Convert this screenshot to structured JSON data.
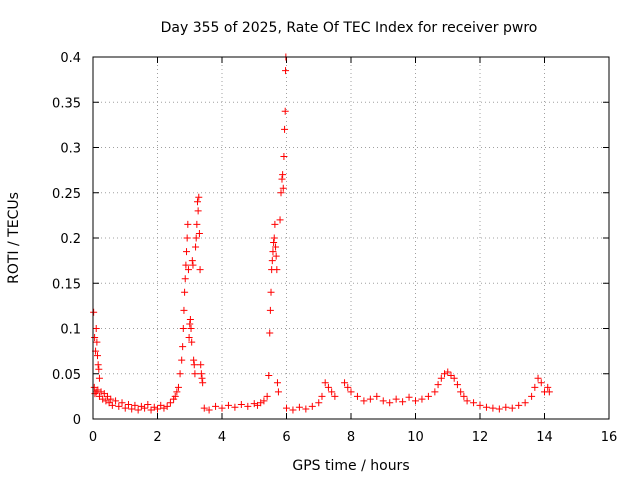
{
  "chart_data": {
    "type": "scatter",
    "title": "Day 355 of 2025, Rate Of TEC Index for receiver pwro",
    "xlabel": "GPS time / hours",
    "ylabel": "ROTI / TECUs",
    "xlim": [
      0,
      16
    ],
    "ylim": [
      0,
      0.4
    ],
    "xticks": [
      0,
      2,
      4,
      6,
      8,
      10,
      12,
      14,
      16
    ],
    "yticks": [
      0,
      0.05,
      0.1,
      0.15,
      0.2,
      0.25,
      0.3,
      0.35,
      0.4
    ],
    "xtick_labels": [
      "0",
      "2",
      "4",
      "6",
      "8",
      "10",
      "12",
      "14",
      "16"
    ],
    "ytick_labels": [
      "0",
      "0.05",
      "0.1",
      "0.15",
      "0.2",
      "0.25",
      "0.3",
      "0.35",
      "0.4"
    ],
    "grid": true,
    "marker": "+",
    "color": "#ff0000",
    "series": [
      {
        "name": "ROTI",
        "points": [
          [
            0.02,
            0.118
          ],
          [
            0.05,
            0.09
          ],
          [
            0.08,
            0.075
          ],
          [
            0.1,
            0.1
          ],
          [
            0.12,
            0.085
          ],
          [
            0.14,
            0.07
          ],
          [
            0.16,
            0.06
          ],
          [
            0.18,
            0.055
          ],
          [
            0.2,
            0.045
          ],
          [
            0.04,
            0.035
          ],
          [
            0.06,
            0.028
          ],
          [
            0.1,
            0.03
          ],
          [
            0.15,
            0.032
          ],
          [
            0.2,
            0.025
          ],
          [
            0.25,
            0.03
          ],
          [
            0.3,
            0.022
          ],
          [
            0.35,
            0.028
          ],
          [
            0.4,
            0.02
          ],
          [
            0.45,
            0.025
          ],
          [
            0.5,
            0.018
          ],
          [
            0.55,
            0.022
          ],
          [
            0.6,
            0.015
          ],
          [
            0.7,
            0.02
          ],
          [
            0.8,
            0.014
          ],
          [
            0.9,
            0.018
          ],
          [
            1.0,
            0.012
          ],
          [
            1.1,
            0.016
          ],
          [
            1.2,
            0.011
          ],
          [
            1.3,
            0.015
          ],
          [
            1.4,
            0.01
          ],
          [
            1.5,
            0.014
          ],
          [
            1.6,
            0.012
          ],
          [
            1.7,
            0.016
          ],
          [
            1.8,
            0.01
          ],
          [
            1.9,
            0.013
          ],
          [
            2.0,
            0.011
          ],
          [
            2.1,
            0.015
          ],
          [
            2.2,
            0.012
          ],
          [
            2.3,
            0.014
          ],
          [
            2.4,
            0.018
          ],
          [
            2.5,
            0.022
          ],
          [
            2.55,
            0.025
          ],
          [
            2.6,
            0.03
          ],
          [
            2.65,
            0.035
          ],
          [
            2.7,
            0.05
          ],
          [
            2.75,
            0.065
          ],
          [
            2.78,
            0.08
          ],
          [
            2.8,
            0.1
          ],
          [
            2.82,
            0.12
          ],
          [
            2.84,
            0.14
          ],
          [
            2.86,
            0.155
          ],
          [
            2.88,
            0.17
          ],
          [
            2.9,
            0.185
          ],
          [
            2.92,
            0.2
          ],
          [
            2.94,
            0.215
          ],
          [
            2.96,
            0.165
          ],
          [
            2.98,
            0.09
          ],
          [
            3.0,
            0.105
          ],
          [
            3.02,
            0.11
          ],
          [
            3.04,
            0.1
          ],
          [
            3.06,
            0.085
          ],
          [
            3.08,
            0.175
          ],
          [
            3.1,
            0.17
          ],
          [
            3.12,
            0.065
          ],
          [
            3.14,
            0.06
          ],
          [
            3.16,
            0.05
          ],
          [
            3.18,
            0.19
          ],
          [
            3.2,
            0.2
          ],
          [
            3.22,
            0.215
          ],
          [
            3.24,
            0.24
          ],
          [
            3.26,
            0.23
          ],
          [
            3.28,
            0.245
          ],
          [
            3.3,
            0.205
          ],
          [
            3.32,
            0.165
          ],
          [
            3.34,
            0.06
          ],
          [
            3.36,
            0.05
          ],
          [
            3.38,
            0.045
          ],
          [
            3.4,
            0.04
          ],
          [
            3.45,
            0.012
          ],
          [
            3.6,
            0.01
          ],
          [
            3.8,
            0.014
          ],
          [
            4.0,
            0.012
          ],
          [
            4.2,
            0.015
          ],
          [
            4.4,
            0.013
          ],
          [
            4.6,
            0.016
          ],
          [
            4.8,
            0.014
          ],
          [
            5.0,
            0.017
          ],
          [
            5.1,
            0.015
          ],
          [
            5.2,
            0.018
          ],
          [
            5.3,
            0.02
          ],
          [
            5.4,
            0.025
          ],
          [
            5.45,
            0.048
          ],
          [
            5.48,
            0.095
          ],
          [
            5.5,
            0.12
          ],
          [
            5.52,
            0.14
          ],
          [
            5.54,
            0.165
          ],
          [
            5.56,
            0.175
          ],
          [
            5.58,
            0.185
          ],
          [
            5.6,
            0.195
          ],
          [
            5.62,
            0.2
          ],
          [
            5.64,
            0.215
          ],
          [
            5.66,
            0.19
          ],
          [
            5.68,
            0.18
          ],
          [
            5.7,
            0.165
          ],
          [
            5.72,
            0.04
          ],
          [
            5.75,
            0.03
          ],
          [
            5.8,
            0.22
          ],
          [
            5.83,
            0.25
          ],
          [
            5.86,
            0.265
          ],
          [
            5.88,
            0.27
          ],
          [
            5.9,
            0.255
          ],
          [
            5.92,
            0.29
          ],
          [
            5.94,
            0.32
          ],
          [
            5.96,
            0.34
          ],
          [
            5.97,
            0.385
          ],
          [
            5.98,
            0.4
          ],
          [
            6.0,
            0.012
          ],
          [
            6.2,
            0.01
          ],
          [
            6.4,
            0.013
          ],
          [
            6.6,
            0.011
          ],
          [
            6.8,
            0.014
          ],
          [
            7.0,
            0.018
          ],
          [
            7.1,
            0.025
          ],
          [
            7.2,
            0.04
          ],
          [
            7.3,
            0.035
          ],
          [
            7.4,
            0.03
          ],
          [
            7.5,
            0.025
          ],
          [
            7.8,
            0.04
          ],
          [
            7.9,
            0.035
          ],
          [
            8.0,
            0.03
          ],
          [
            8.2,
            0.025
          ],
          [
            8.4,
            0.02
          ],
          [
            8.6,
            0.022
          ],
          [
            8.8,
            0.025
          ],
          [
            9.0,
            0.02
          ],
          [
            9.2,
            0.018
          ],
          [
            9.4,
            0.022
          ],
          [
            9.6,
            0.019
          ],
          [
            9.8,
            0.024
          ],
          [
            10.0,
            0.02
          ],
          [
            10.2,
            0.022
          ],
          [
            10.4,
            0.025
          ],
          [
            10.6,
            0.03
          ],
          [
            10.7,
            0.038
          ],
          [
            10.8,
            0.045
          ],
          [
            10.9,
            0.05
          ],
          [
            11.0,
            0.052
          ],
          [
            11.1,
            0.048
          ],
          [
            11.2,
            0.045
          ],
          [
            11.3,
            0.038
          ],
          [
            11.4,
            0.03
          ],
          [
            11.5,
            0.025
          ],
          [
            11.6,
            0.02
          ],
          [
            11.8,
            0.018
          ],
          [
            12.0,
            0.015
          ],
          [
            12.2,
            0.013
          ],
          [
            12.4,
            0.012
          ],
          [
            12.6,
            0.011
          ],
          [
            12.8,
            0.013
          ],
          [
            13.0,
            0.012
          ],
          [
            13.2,
            0.015
          ],
          [
            13.4,
            0.018
          ],
          [
            13.6,
            0.025
          ],
          [
            13.7,
            0.035
          ],
          [
            13.8,
            0.045
          ],
          [
            13.9,
            0.04
          ],
          [
            14.0,
            0.03
          ],
          [
            14.1,
            0.035
          ],
          [
            14.15,
            0.03
          ]
        ]
      }
    ]
  }
}
